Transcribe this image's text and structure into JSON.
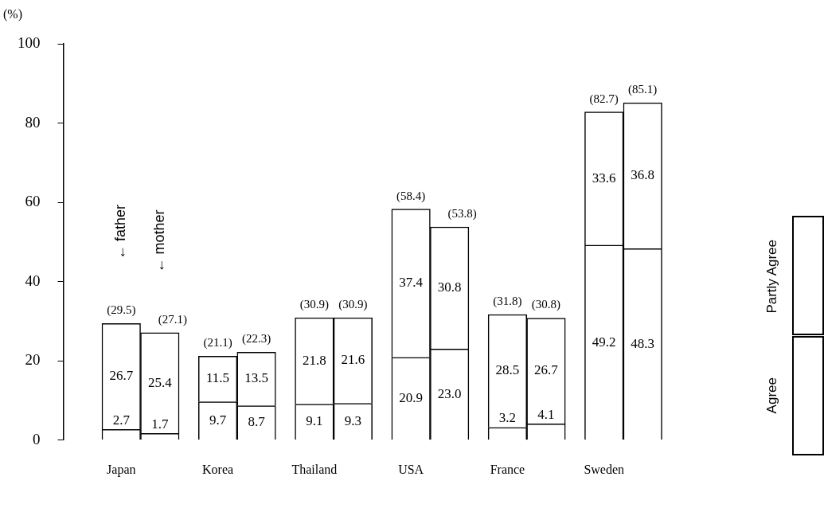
{
  "chart_data": {
    "type": "bar",
    "stacked": true,
    "ylabel": "(%)",
    "categories": [
      "Japan",
      null,
      "Korea",
      null,
      "Thailand",
      null,
      "USA",
      null,
      "France",
      null,
      "Sweden",
      null
    ],
    "series": [
      {
        "name": "Agree",
        "color": "#ffffff",
        "values": [
          2.7,
          1.7,
          9.7,
          8.7,
          9.1,
          9.3,
          20.9,
          23.0,
          3.2,
          4.1,
          49.2,
          48.3
        ],
        "value_labels": [
          "2.7",
          "1.7",
          "9.7",
          "8.7",
          "9.1",
          "9.3",
          "20.9",
          "23.0",
          "3.2",
          "4.1",
          "49.2",
          "48.3"
        ]
      },
      {
        "name": "Partly Agree",
        "color": "#ffffff",
        "values": [
          26.7,
          25.4,
          11.5,
          13.5,
          21.8,
          21.6,
          37.4,
          30.8,
          28.5,
          26.7,
          33.6,
          36.8
        ],
        "value_labels": [
          "26.7",
          "25.4",
          "11.5",
          "13.5",
          "21.8",
          "21.6",
          "37.4",
          "30.8",
          "28.5",
          "26.7",
          "33.6",
          "36.8"
        ]
      }
    ],
    "totals": [
      "(29.5)",
      "(27.1)",
      "(21.1)",
      "(22.3)",
      "(30.9)",
      "(30.9)",
      "(58.4)",
      "(53.8)",
      "(31.8)",
      "(30.8)",
      "(82.7)",
      "(85.1)"
    ],
    "annotations": [
      "← father",
      "← mother"
    ],
    "ylim": [
      0,
      100
    ],
    "yticks": [
      0,
      20,
      40,
      60,
      80,
      100
    ],
    "grid": false,
    "legend": "right"
  }
}
